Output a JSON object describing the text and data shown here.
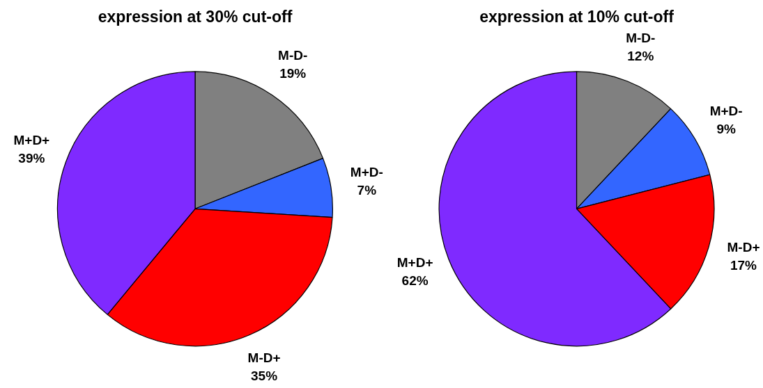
{
  "chart_data": [
    {
      "type": "pie",
      "title": "expression at 30% cut-off",
      "categories": [
        "M-D-",
        "M+D-",
        "M-D+",
        "M+D+"
      ],
      "values": [
        19,
        7,
        35,
        39
      ],
      "colors": [
        "#808080",
        "#3366ff",
        "#ff0000",
        "#7f2aff"
      ],
      "value_labels": [
        "19%",
        "7%",
        "35%",
        "39%"
      ],
      "legend": false
    },
    {
      "type": "pie",
      "title": "expression at 10% cut-off",
      "categories": [
        "M-D-",
        "M+D-",
        "M-D+",
        "M+D+"
      ],
      "values": [
        12,
        9,
        17,
        62
      ],
      "colors": [
        "#808080",
        "#3366ff",
        "#ff0000",
        "#7f2aff"
      ],
      "value_labels": [
        "12%",
        "9%",
        "17%",
        "62%"
      ],
      "legend": false
    }
  ]
}
